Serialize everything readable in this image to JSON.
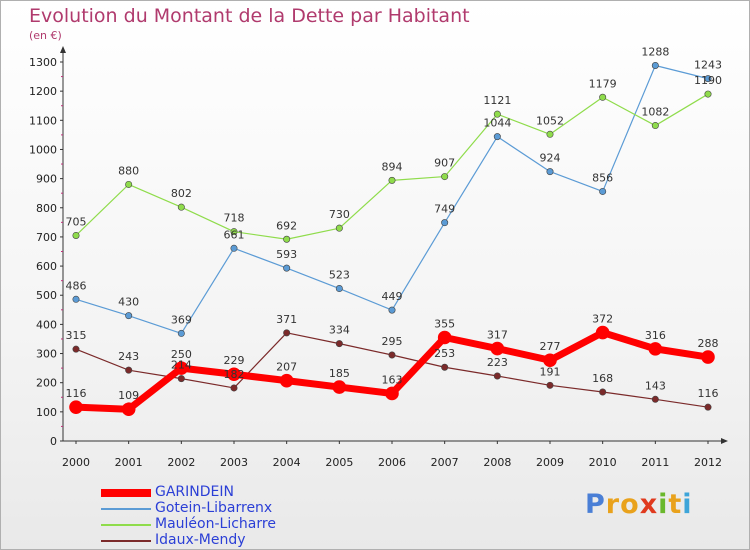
{
  "header": {
    "title": "Evolution du Montant de la Dette par Habitant",
    "subtitle": "(en €)"
  },
  "colors": {
    "garindein": "#ff0000",
    "gotein": "#5b9bd5",
    "mauleon": "#8fdc4b",
    "idaux": "#7b2a2a",
    "title": "#b03a6d",
    "legend_text": "#2b3fd6"
  },
  "logo": {
    "text": "Proxiti",
    "letter_colors": [
      "#4a7fd6",
      "#e9a21c",
      "#e9a21c",
      "#e03a1e",
      "#6ab82c",
      "#e9a21c",
      "#3da5d9"
    ]
  },
  "chart_data": {
    "type": "line",
    "title": "Evolution du Montant de la Dette par Habitant",
    "subtitle": "(en €)",
    "x": [
      "2000",
      "2001",
      "2002",
      "2003",
      "2004",
      "2005",
      "2006",
      "2007",
      "2008",
      "2009",
      "2010",
      "2011",
      "2012"
    ],
    "ylim": [
      0,
      1300
    ],
    "yticks": [
      0,
      100,
      200,
      300,
      400,
      500,
      600,
      700,
      800,
      900,
      1000,
      1100,
      1200,
      1300
    ],
    "grid": false,
    "legend_position": "bottom-left",
    "series": [
      {
        "name": "GARINDEIN",
        "color": "#ff0000",
        "width": 7,
        "values": [
          116,
          109,
          250,
          229,
          207,
          185,
          163,
          355,
          317,
          277,
          372,
          316,
          288
        ]
      },
      {
        "name": "Gotein-Libarrenx",
        "color": "#5b9bd5",
        "width": 1.2,
        "values": [
          486,
          430,
          369,
          661,
          593,
          523,
          449,
          749,
          1044,
          924,
          856,
          1288,
          1243
        ]
      },
      {
        "name": "Mauléon-Licharre",
        "color": "#8fdc4b",
        "width": 1.2,
        "values": [
          705,
          880,
          802,
          718,
          692,
          730,
          894,
          907,
          1121,
          1052,
          1179,
          1082,
          1190
        ]
      },
      {
        "name": "Idaux-Mendy",
        "color": "#7b2a2a",
        "width": 1.2,
        "values": [
          315,
          243,
          214,
          182,
          371,
          334,
          295,
          253,
          223,
          191,
          168,
          143,
          116
        ]
      }
    ]
  }
}
